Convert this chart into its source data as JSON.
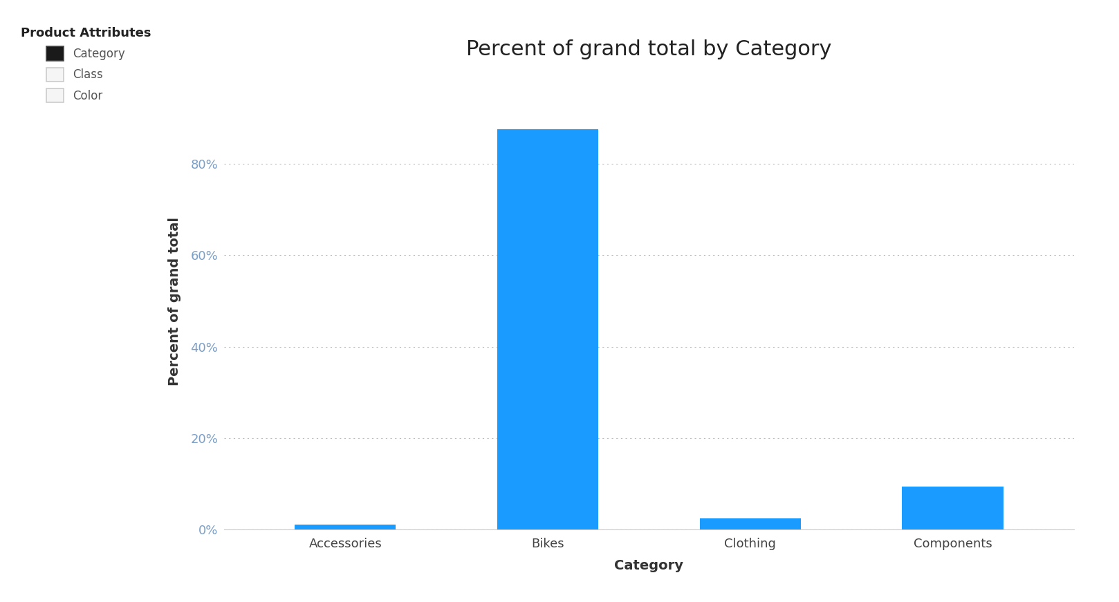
{
  "title": "Percent of grand total by Category",
  "categories": [
    "Accessories",
    "Bikes",
    "Clothing",
    "Components"
  ],
  "values": [
    1.2,
    87.5,
    2.5,
    9.5
  ],
  "bar_color": "#1a9bff",
  "ylabel": "Percent of grand total",
  "xlabel": "Category",
  "ylim": [
    0,
    100
  ],
  "yticks": [
    0,
    20,
    40,
    60,
    80
  ],
  "ytick_labels": [
    "0%",
    "20%",
    "40%",
    "60%",
    "80%"
  ],
  "background_color": "#ffffff",
  "grid_color": "#bbbbbb",
  "title_fontsize": 22,
  "axis_label_fontsize": 14,
  "tick_fontsize": 13,
  "ytick_color": "#7b9fc7",
  "xtick_color": "#444444",
  "legend_title": "Product Attributes",
  "legend_items": [
    {
      "label": "Category",
      "filled": true,
      "facecolor": "#1a1a1a",
      "edgecolor": "#444444"
    },
    {
      "label": "Class",
      "filled": false,
      "facecolor": "#f5f5f5",
      "edgecolor": "#cccccc"
    },
    {
      "label": "Color",
      "filled": false,
      "facecolor": "#f5f5f5",
      "edgecolor": "#cccccc"
    }
  ]
}
